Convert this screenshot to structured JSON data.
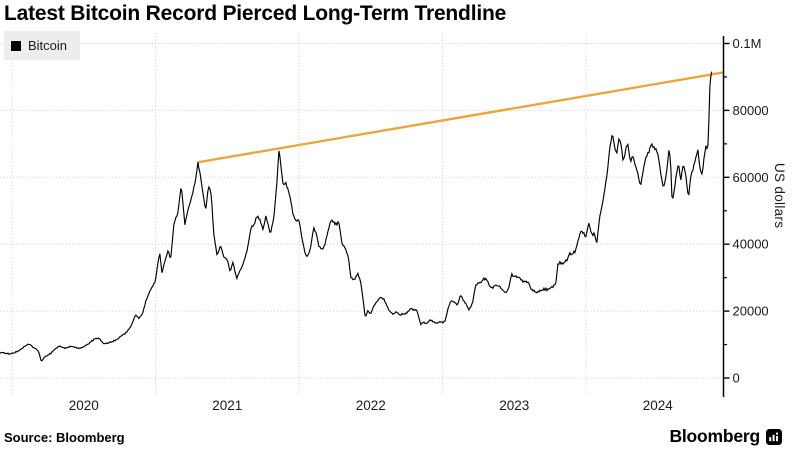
{
  "page": {
    "title": "Latest Bitcoin Record Pierced Long-Term Trendline"
  },
  "legend": {
    "label": "Bitcoin",
    "marker_color": "#000000",
    "background": "#EDEDED"
  },
  "footer": {
    "source": "Source: Bloomberg",
    "brand_wordmark": "Bloomberg",
    "brand_icon": "bloomberg-terminal-icon"
  },
  "colors": {
    "background": "#FFFFFF",
    "price_line": "#000000",
    "trendline": "#E9A63B",
    "grid": "#C9C9C9",
    "axis": "#000000",
    "tick_label": "#1A1A1A"
  },
  "chart_data": {
    "type": "line",
    "title": "Latest Bitcoin Record Pierced Long-Term Trendline",
    "xlabel": "",
    "ylabel": "US dollars",
    "ylim": [
      0,
      100000
    ],
    "grid": "dotted",
    "legend_position": "top-left",
    "x_axis": {
      "unit": "years_since_2020",
      "range": [
        -0.084,
        4.953
      ],
      "gridlines_t": [
        0,
        1,
        2,
        3,
        4
      ],
      "labels": [
        {
          "text": "2020",
          "t": 0.5
        },
        {
          "text": "2021",
          "t": 1.5
        },
        {
          "text": "2022",
          "t": 2.5
        },
        {
          "text": "2023",
          "t": 3.5
        },
        {
          "text": "2024",
          "t": 4.5
        }
      ]
    },
    "y_axis": {
      "ticks": [
        {
          "value": 0,
          "label": "0"
        },
        {
          "value": 20000,
          "label": "20000"
        },
        {
          "value": 40000,
          "label": "40000"
        },
        {
          "value": 60000,
          "label": "60000"
        },
        {
          "value": 80000,
          "label": "80000"
        },
        {
          "value": 100000,
          "label": "0.1M"
        }
      ],
      "minor_tick_values": [
        10000,
        30000,
        50000,
        70000,
        90000
      ]
    },
    "series": [
      {
        "name": "Bitcoin",
        "color": "#000000",
        "points": [
          [
            -0.084,
            7600
          ],
          [
            -0.05,
            7300
          ],
          [
            0.0,
            7200
          ],
          [
            0.04,
            7900
          ],
          [
            0.08,
            9300
          ],
          [
            0.12,
            10300
          ],
          [
            0.155,
            9100
          ],
          [
            0.185,
            8000
          ],
          [
            0.205,
            4900
          ],
          [
            0.23,
            6400
          ],
          [
            0.27,
            7300
          ],
          [
            0.3,
            8700
          ],
          [
            0.33,
            9600
          ],
          [
            0.37,
            9000
          ],
          [
            0.41,
            9500
          ],
          [
            0.45,
            9100
          ],
          [
            0.49,
            9200
          ],
          [
            0.53,
            10200
          ],
          [
            0.565,
            11300
          ],
          [
            0.59,
            11900
          ],
          [
            0.615,
            11400
          ],
          [
            0.64,
            10200
          ],
          [
            0.67,
            10500
          ],
          [
            0.7,
            10800
          ],
          [
            0.735,
            11500
          ],
          [
            0.77,
            13000
          ],
          [
            0.8,
            13800
          ],
          [
            0.83,
            15500
          ],
          [
            0.86,
            18700
          ],
          [
            0.885,
            17800
          ],
          [
            0.91,
            19200
          ],
          [
            0.935,
            23300
          ],
          [
            0.965,
            26500
          ],
          [
            1.0,
            29000
          ],
          [
            1.015,
            34000
          ],
          [
            1.03,
            37500
          ],
          [
            1.045,
            31500
          ],
          [
            1.07,
            35500
          ],
          [
            1.09,
            38500
          ],
          [
            1.105,
            35000
          ],
          [
            1.13,
            46500
          ],
          [
            1.155,
            49000
          ],
          [
            1.18,
            57800
          ],
          [
            1.205,
            45800
          ],
          [
            1.23,
            51000
          ],
          [
            1.255,
            54500
          ],
          [
            1.28,
            59500
          ],
          [
            1.296,
            64500
          ],
          [
            1.315,
            60000
          ],
          [
            1.33,
            55500
          ],
          [
            1.35,
            50000
          ],
          [
            1.37,
            57500
          ],
          [
            1.39,
            54500
          ],
          [
            1.405,
            43500
          ],
          [
            1.43,
            36500
          ],
          [
            1.455,
            39500
          ],
          [
            1.48,
            35500
          ],
          [
            1.5,
            35700
          ],
          [
            1.52,
            31800
          ],
          [
            1.54,
            34800
          ],
          [
            1.565,
            29800
          ],
          [
            1.59,
            32000
          ],
          [
            1.615,
            34500
          ],
          [
            1.64,
            38500
          ],
          [
            1.665,
            44500
          ],
          [
            1.69,
            46200
          ],
          [
            1.71,
            48800
          ],
          [
            1.73,
            47200
          ],
          [
            1.75,
            44500
          ],
          [
            1.77,
            48700
          ],
          [
            1.8,
            43000
          ],
          [
            1.825,
            48200
          ],
          [
            1.845,
            57500
          ],
          [
            1.861,
            68500
          ],
          [
            1.875,
            63200
          ],
          [
            1.89,
            57500
          ],
          [
            1.905,
            58500
          ],
          [
            1.92,
            56500
          ],
          [
            1.94,
            53800
          ],
          [
            1.958,
            49000
          ],
          [
            1.98,
            46800
          ],
          [
            2.0,
            47500
          ],
          [
            2.02,
            41800
          ],
          [
            2.045,
            36800
          ],
          [
            2.06,
            36200
          ],
          [
            2.08,
            38500
          ],
          [
            2.1,
            44200
          ],
          [
            2.12,
            43500
          ],
          [
            2.14,
            39200
          ],
          [
            2.16,
            38500
          ],
          [
            2.18,
            40000
          ],
          [
            2.2,
            43500
          ],
          [
            2.225,
            47500
          ],
          [
            2.25,
            46200
          ],
          [
            2.28,
            45800
          ],
          [
            2.3,
            40200
          ],
          [
            2.32,
            38800
          ],
          [
            2.345,
            36000
          ],
          [
            2.36,
            30200
          ],
          [
            2.385,
            29500
          ],
          [
            2.41,
            31500
          ],
          [
            2.43,
            28800
          ],
          [
            2.45,
            22500
          ],
          [
            2.462,
            17900
          ],
          [
            2.48,
            20200
          ],
          [
            2.5,
            19200
          ],
          [
            2.52,
            21500
          ],
          [
            2.545,
            23000
          ],
          [
            2.565,
            24200
          ],
          [
            2.59,
            23800
          ],
          [
            2.61,
            22000
          ],
          [
            2.63,
            20000
          ],
          [
            2.655,
            18900
          ],
          [
            2.68,
            19800
          ],
          [
            2.705,
            18800
          ],
          [
            2.73,
            19300
          ],
          [
            2.755,
            19500
          ],
          [
            2.78,
            20600
          ],
          [
            2.8,
            20500
          ],
          [
            2.82,
            20400
          ],
          [
            2.835,
            18200
          ],
          [
            2.848,
            15900
          ],
          [
            2.87,
            16700
          ],
          [
            2.89,
            16300
          ],
          [
            2.91,
            17100
          ],
          [
            2.93,
            16900
          ],
          [
            2.955,
            16500
          ],
          [
            2.98,
            16600
          ],
          [
            3.0,
            16600
          ],
          [
            3.02,
            17300
          ],
          [
            3.04,
            21000
          ],
          [
            3.06,
            23100
          ],
          [
            3.085,
            22700
          ],
          [
            3.105,
            21800
          ],
          [
            3.125,
            24800
          ],
          [
            3.145,
            23500
          ],
          [
            3.165,
            22100
          ],
          [
            3.185,
            20300
          ],
          [
            3.21,
            22400
          ],
          [
            3.23,
            27600
          ],
          [
            3.25,
            28000
          ],
          [
            3.27,
            28400
          ],
          [
            3.29,
            29900
          ],
          [
            3.31,
            29400
          ],
          [
            3.33,
            27300
          ],
          [
            3.35,
            26900
          ],
          [
            3.375,
            27600
          ],
          [
            3.4,
            27200
          ],
          [
            3.42,
            26300
          ],
          [
            3.44,
            25300
          ],
          [
            3.46,
            26500
          ],
          [
            3.48,
            30600
          ],
          [
            3.5,
            30300
          ],
          [
            3.52,
            30200
          ],
          [
            3.54,
            29700
          ],
          [
            3.56,
            29300
          ],
          [
            3.58,
            29100
          ],
          [
            3.6,
            28800
          ],
          [
            3.62,
            26100
          ],
          [
            3.645,
            26000
          ],
          [
            3.67,
            25900
          ],
          [
            3.695,
            26300
          ],
          [
            3.72,
            26600
          ],
          [
            3.745,
            26800
          ],
          [
            3.77,
            27300
          ],
          [
            3.79,
            28300
          ],
          [
            3.805,
            34300
          ],
          [
            3.83,
            34500
          ],
          [
            3.85,
            34900
          ],
          [
            3.87,
            35500
          ],
          [
            3.885,
            37300
          ],
          [
            3.905,
            36800
          ],
          [
            3.925,
            37800
          ],
          [
            3.945,
            41300
          ],
          [
            3.965,
            43800
          ],
          [
            3.985,
            42800
          ],
          [
            4.0,
            42500
          ],
          [
            4.02,
            46800
          ],
          [
            4.04,
            42900
          ],
          [
            4.06,
            43100
          ],
          [
            4.075,
            40000
          ],
          [
            4.095,
            47900
          ],
          [
            4.115,
            51800
          ],
          [
            4.135,
            57500
          ],
          [
            4.15,
            61800
          ],
          [
            4.165,
            68800
          ],
          [
            4.185,
            73200
          ],
          [
            4.2,
            68800
          ],
          [
            4.215,
            67200
          ],
          [
            4.23,
            71600
          ],
          [
            4.245,
            69800
          ],
          [
            4.26,
            64600
          ],
          [
            4.275,
            67800
          ],
          [
            4.29,
            70600
          ],
          [
            4.31,
            64400
          ],
          [
            4.325,
            66200
          ],
          [
            4.345,
            63800
          ],
          [
            4.365,
            60300
          ],
          [
            4.38,
            57300
          ],
          [
            4.4,
            62300
          ],
          [
            4.42,
            66300
          ],
          [
            4.44,
            67800
          ],
          [
            4.455,
            70100
          ],
          [
            4.47,
            69300
          ],
          [
            4.49,
            67800
          ],
          [
            4.505,
            66200
          ],
          [
            4.52,
            61400
          ],
          [
            4.54,
            56700
          ],
          [
            4.56,
            60600
          ],
          [
            4.578,
            67900
          ],
          [
            4.59,
            64800
          ],
          [
            4.6,
            52900
          ],
          [
            4.615,
            55800
          ],
          [
            4.63,
            61000
          ],
          [
            4.645,
            64300
          ],
          [
            4.66,
            58900
          ],
          [
            4.675,
            63400
          ],
          [
            4.69,
            62800
          ],
          [
            4.705,
            57200
          ],
          [
            4.715,
            53900
          ],
          [
            4.73,
            60600
          ],
          [
            4.75,
            63400
          ],
          [
            4.765,
            65700
          ],
          [
            4.78,
            68100
          ],
          [
            4.795,
            62400
          ],
          [
            4.81,
            60700
          ],
          [
            4.825,
            66600
          ],
          [
            4.838,
            69900
          ],
          [
            4.848,
            67600
          ],
          [
            4.856,
            75600
          ],
          [
            4.862,
            87600
          ],
          [
            4.867,
            85600
          ],
          [
            4.873,
            93400
          ],
          [
            4.877,
            91600
          ]
        ]
      }
    ],
    "trendline": {
      "name": "long-term-trendline",
      "color": "#E9A63B",
      "points": [
        [
          1.296,
          64500
        ],
        [
          4.953,
          91300
        ]
      ]
    }
  }
}
